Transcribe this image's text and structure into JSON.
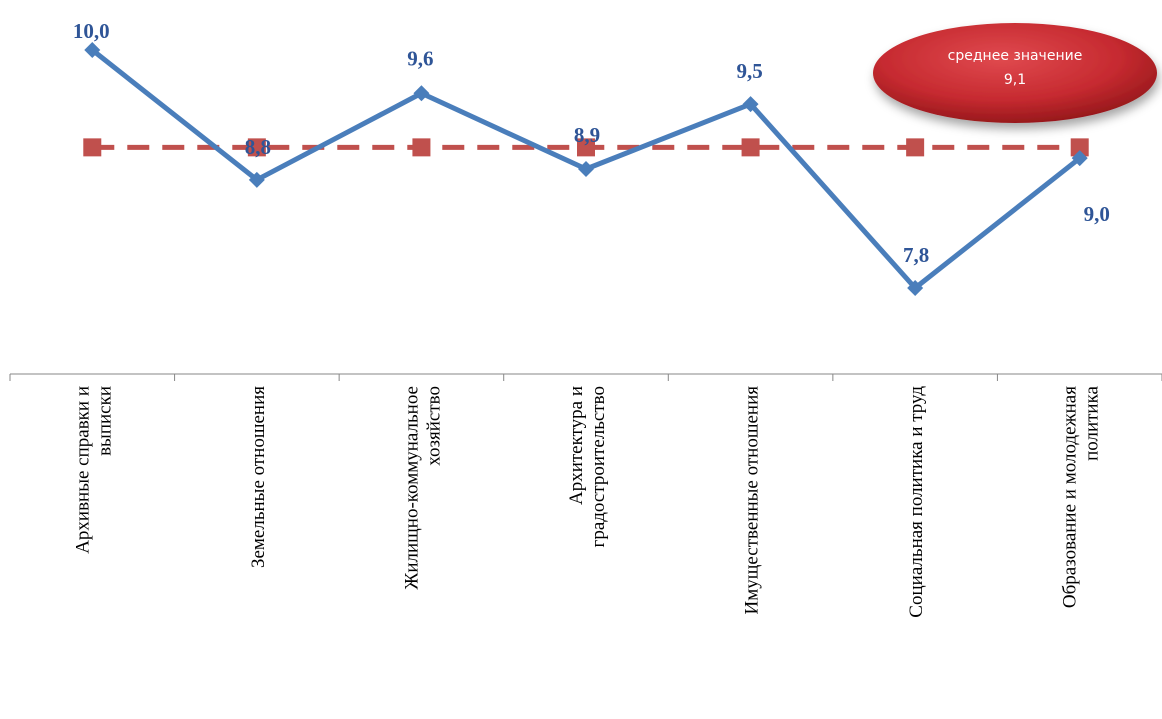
{
  "chart_data": {
    "type": "line",
    "categories": [
      [
        "Архивные справки и",
        "выписки"
      ],
      [
        "Земельные отношения"
      ],
      [
        "Жилищно-коммунальное",
        "хозяйство"
      ],
      [
        "Архитектура и",
        "градостроительство"
      ],
      [
        "Имущественные отношения"
      ],
      [
        "Социальная политика и труд"
      ],
      [
        "Образование и молодежная",
        "политика"
      ]
    ],
    "series": [
      {
        "values": [
          10.0,
          8.8,
          9.6,
          8.9,
          9.5,
          7.8,
          9.0
        ],
        "value_labels": [
          "10,0",
          "8,8",
          "9,6",
          "8,9",
          "9,5",
          "7,8",
          "9,0"
        ],
        "color": "#4A7EBB",
        "marker": "diamond"
      },
      {
        "values": [
          9.1,
          9.1,
          9.1,
          9.1,
          9.1,
          9.1,
          9.1
        ],
        "color": "#C0504D",
        "marker": "square",
        "line_style": "dashed"
      }
    ],
    "ylim": [
      7.0,
      10.2
    ],
    "grid": false,
    "annotation": {
      "lines": [
        "среднее значение",
        "9,1"
      ],
      "color": "#C0282D"
    }
  }
}
